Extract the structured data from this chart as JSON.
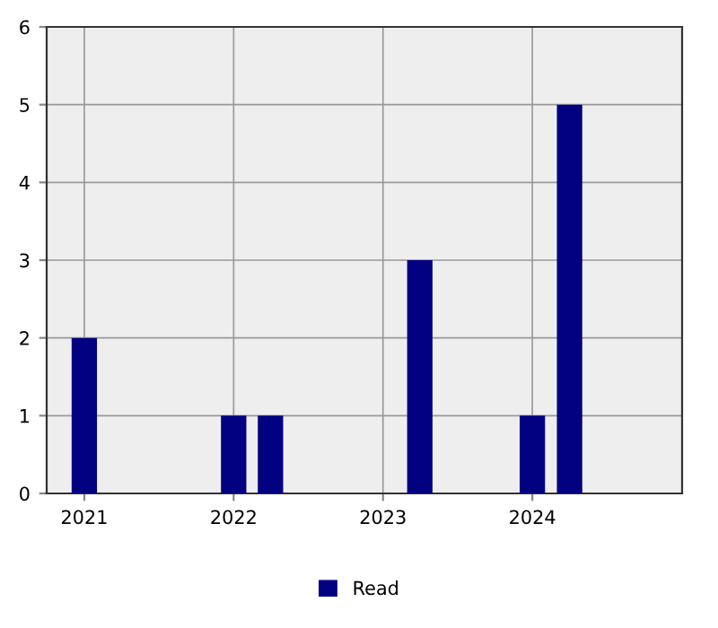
{
  "chart_data": {
    "type": "bar",
    "x": [
      "2021-01",
      "2022-01",
      "2022-04",
      "2023-04",
      "2024-01",
      "2024-04"
    ],
    "series": [
      {
        "name": "Read",
        "color": "#000080",
        "values": [
          2,
          1,
          1,
          3,
          1,
          5
        ]
      }
    ],
    "xlim": [
      "2020-10",
      "2025-01"
    ],
    "xticks": [
      {
        "value": "2021",
        "label": "2021"
      },
      {
        "value": "2022",
        "label": "2022"
      },
      {
        "value": "2023",
        "label": "2023"
      },
      {
        "value": "2024",
        "label": "2024"
      }
    ],
    "ylim": [
      0,
      6
    ],
    "yticks": [
      0,
      1,
      2,
      3,
      4,
      5,
      6
    ],
    "grid": true,
    "legend": "bottom"
  }
}
